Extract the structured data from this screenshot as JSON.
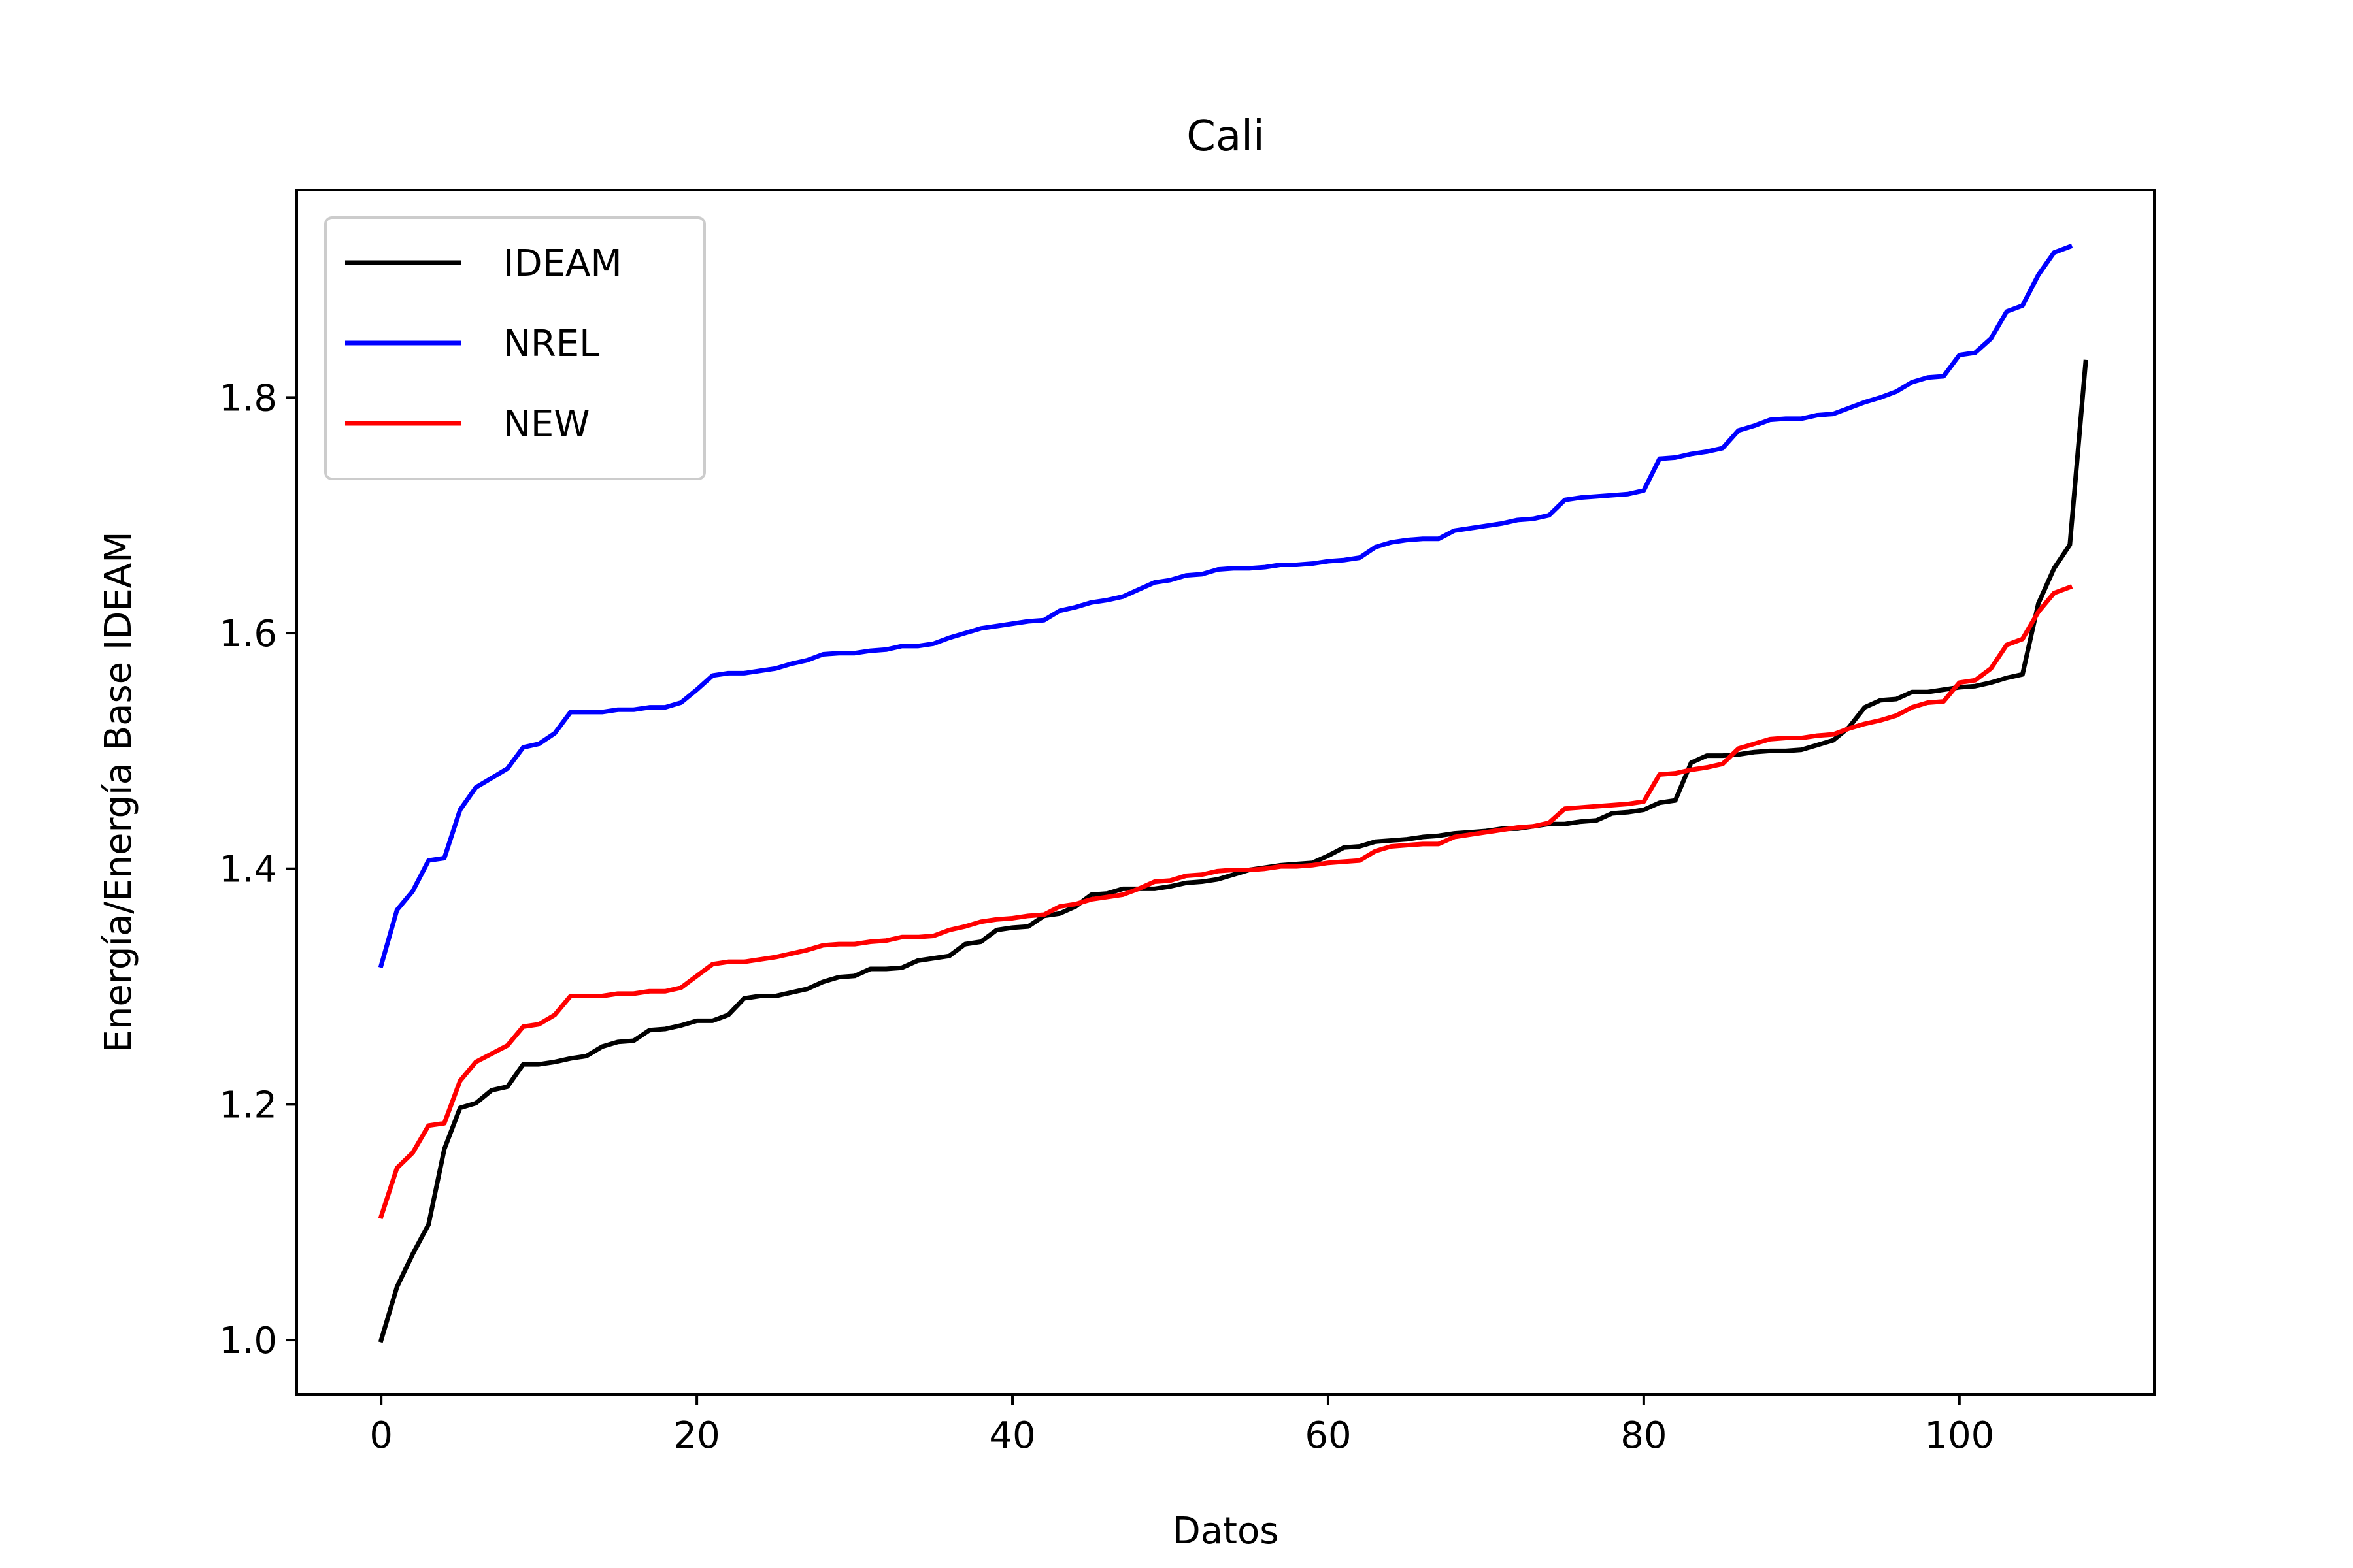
{
  "chart_data": {
    "type": "line",
    "title": "Cali",
    "xlabel": "Datos",
    "ylabel": "Energía/Energía Base IDEAM",
    "xlim": [
      -5.35,
      112.35
    ],
    "ylim": [
      0.954,
      1.976
    ],
    "x_ticks": [
      0,
      20,
      40,
      60,
      80,
      100
    ],
    "y_ticks": [
      1.0,
      1.2,
      1.4,
      1.6,
      1.8
    ],
    "x_tick_labels": [
      "0",
      "20",
      "40",
      "60",
      "80",
      "100"
    ],
    "y_tick_labels": [
      "1.0",
      "1.2",
      "1.4",
      "1.6",
      "1.8"
    ],
    "grid": false,
    "legend": {
      "position": "top-left",
      "entries": [
        "IDEAM",
        "NREL",
        "NEW"
      ]
    },
    "series": [
      {
        "name": "IDEAM",
        "color": "#000000",
        "x_start": 0,
        "values": [
          1.0,
          1.045,
          1.073,
          1.098,
          1.162,
          1.197,
          1.201,
          1.212,
          1.215,
          1.234,
          1.234,
          1.236,
          1.239,
          1.241,
          1.249,
          1.253,
          1.254,
          1.263,
          1.264,
          1.267,
          1.271,
          1.271,
          1.276,
          1.29,
          1.292,
          1.292,
          1.295,
          1.298,
          1.304,
          1.308,
          1.309,
          1.315,
          1.315,
          1.316,
          1.322,
          1.324,
          1.326,
          1.336,
          1.338,
          1.348,
          1.35,
          1.351,
          1.36,
          1.362,
          1.368,
          1.378,
          1.379,
          1.383,
          1.383,
          1.383,
          1.385,
          1.388,
          1.389,
          1.391,
          1.395,
          1.399,
          1.401,
          1.403,
          1.404,
          1.405,
          1.411,
          1.418,
          1.419,
          1.423,
          1.424,
          1.425,
          1.427,
          1.428,
          1.43,
          1.431,
          1.432,
          1.434,
          1.434,
          1.436,
          1.438,
          1.438,
          1.44,
          1.441,
          1.447,
          1.448,
          1.45,
          1.456,
          1.458,
          1.49,
          1.496,
          1.496,
          1.497,
          1.499,
          1.5,
          1.5,
          1.501,
          1.505,
          1.509,
          1.52,
          1.537,
          1.543,
          1.544,
          1.55,
          1.55,
          1.552,
          1.554,
          1.555,
          1.558,
          1.562,
          1.565,
          1.625,
          1.655,
          1.675,
          1.83
        ]
      },
      {
        "name": "NREL",
        "color": "#0000ff",
        "x_start": 0,
        "values": [
          1.318,
          1.365,
          1.381,
          1.407,
          1.409,
          1.45,
          1.469,
          1.477,
          1.485,
          1.503,
          1.506,
          1.515,
          1.533,
          1.533,
          1.533,
          1.535,
          1.535,
          1.537,
          1.537,
          1.541,
          1.552,
          1.564,
          1.566,
          1.566,
          1.568,
          1.57,
          1.574,
          1.577,
          1.582,
          1.583,
          1.583,
          1.585,
          1.586,
          1.589,
          1.589,
          1.591,
          1.596,
          1.6,
          1.604,
          1.606,
          1.608,
          1.61,
          1.611,
          1.619,
          1.622,
          1.626,
          1.628,
          1.631,
          1.637,
          1.643,
          1.645,
          1.649,
          1.65,
          1.654,
          1.655,
          1.655,
          1.656,
          1.658,
          1.658,
          1.659,
          1.661,
          1.662,
          1.664,
          1.673,
          1.677,
          1.679,
          1.68,
          1.68,
          1.687,
          1.689,
          1.691,
          1.693,
          1.696,
          1.697,
          1.7,
          1.713,
          1.715,
          1.716,
          1.717,
          1.718,
          1.721,
          1.748,
          1.749,
          1.752,
          1.754,
          1.757,
          1.772,
          1.776,
          1.781,
          1.782,
          1.782,
          1.785,
          1.786,
          1.791,
          1.796,
          1.8,
          1.805,
          1.813,
          1.817,
          1.818,
          1.836,
          1.838,
          1.85,
          1.873,
          1.878,
          1.904,
          1.923,
          1.928
        ]
      },
      {
        "name": "NEW",
        "color": "#ff0000",
        "x_start": 0,
        "values": [
          1.105,
          1.146,
          1.159,
          1.182,
          1.184,
          1.22,
          1.236,
          1.243,
          1.25,
          1.266,
          1.268,
          1.276,
          1.292,
          1.292,
          1.292,
          1.294,
          1.294,
          1.296,
          1.296,
          1.299,
          1.309,
          1.319,
          1.321,
          1.321,
          1.323,
          1.325,
          1.328,
          1.331,
          1.335,
          1.336,
          1.336,
          1.338,
          1.339,
          1.342,
          1.342,
          1.343,
          1.348,
          1.351,
          1.355,
          1.357,
          1.358,
          1.36,
          1.361,
          1.368,
          1.37,
          1.374,
          1.376,
          1.378,
          1.383,
          1.389,
          1.39,
          1.394,
          1.395,
          1.398,
          1.399,
          1.399,
          1.4,
          1.402,
          1.402,
          1.403,
          1.405,
          1.406,
          1.407,
          1.415,
          1.419,
          1.42,
          1.421,
          1.421,
          1.427,
          1.429,
          1.431,
          1.433,
          1.435,
          1.436,
          1.439,
          1.451,
          1.452,
          1.453,
          1.454,
          1.455,
          1.457,
          1.48,
          1.481,
          1.484,
          1.486,
          1.489,
          1.502,
          1.506,
          1.51,
          1.511,
          1.511,
          1.513,
          1.514,
          1.519,
          1.523,
          1.526,
          1.53,
          1.537,
          1.541,
          1.542,
          1.558,
          1.56,
          1.57,
          1.59,
          1.595,
          1.618,
          1.634,
          1.639
        ]
      }
    ]
  }
}
